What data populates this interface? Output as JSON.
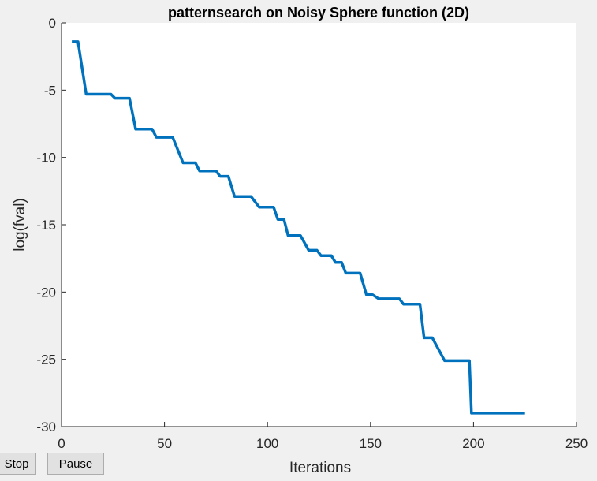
{
  "chart_data": {
    "type": "line",
    "title": "patternsearch on Noisy Sphere function (2D)",
    "xlabel": "Iterations",
    "ylabel": "log(fval)",
    "xlim": [
      0,
      250
    ],
    "ylim": [
      -30,
      0
    ],
    "xticks": [
      "0",
      "50",
      "100",
      "150",
      "200",
      "250"
    ],
    "yticks": [
      "0",
      "-5",
      "-10",
      "-15",
      "-20",
      "-25",
      "-30"
    ],
    "grid": false,
    "line_color": "#0072bd",
    "series": [
      {
        "x": [
          5,
          8,
          12,
          24,
          26,
          33,
          36,
          44,
          46,
          54,
          59,
          65,
          67,
          75,
          77,
          81,
          84,
          92,
          96,
          103,
          105,
          108,
          110,
          116,
          120,
          124,
          126,
          131,
          133,
          136,
          138,
          145,
          148,
          151,
          154,
          164,
          166,
          174,
          176,
          180,
          186,
          198,
          199,
          207,
          209,
          225
        ],
        "y": [
          -1.4,
          -1.4,
          -5.3,
          -5.3,
          -5.6,
          -5.6,
          -7.9,
          -7.9,
          -8.5,
          -8.5,
          -10.4,
          -10.4,
          -11.0,
          -11.0,
          -11.4,
          -11.4,
          -12.9,
          -12.9,
          -13.7,
          -13.7,
          -14.6,
          -14.6,
          -15.8,
          -15.8,
          -16.9,
          -16.9,
          -17.3,
          -17.3,
          -17.8,
          -17.8,
          -18.6,
          -18.6,
          -20.2,
          -20.2,
          -20.5,
          -20.5,
          -20.9,
          -20.9,
          -23.4,
          -23.4,
          -25.1,
          -25.1,
          -29.0,
          -29.0,
          -29.0,
          -29.0
        ]
      }
    ]
  },
  "controls": {
    "stop_label": "Stop",
    "pause_label": "Pause"
  }
}
